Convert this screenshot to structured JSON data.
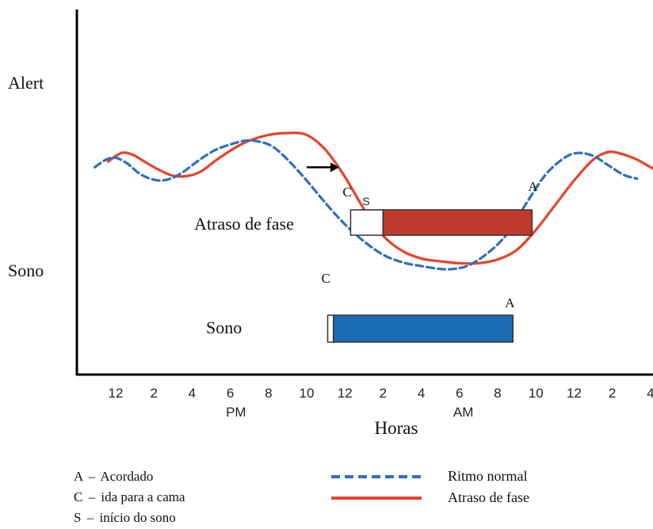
{
  "chart_data": {
    "type": "line",
    "ylabel_top": "Alert",
    "ylabel_bottom": "Sono",
    "xlabel": "Horas",
    "tick_labels": [
      "12",
      "2",
      "4",
      "6",
      "8",
      "10",
      "12",
      "2",
      "4",
      "6",
      "8",
      "10",
      "12",
      "2",
      "4"
    ],
    "tick_hours": [
      12,
      14,
      16,
      18,
      20,
      22,
      24,
      26,
      28,
      30,
      32,
      34,
      36,
      38,
      40
    ],
    "period_labels": [
      {
        "text": "PM",
        "hour": 18.3
      },
      {
        "text": "AM",
        "hour": 30.2
      }
    ],
    "xlim": [
      10.2,
      41.0
    ],
    "series": [
      {
        "name": "Ritmo normal",
        "color": "#2e6fc0",
        "style": "dashed",
        "points": [
          [
            10.9,
            62
          ],
          [
            11.5,
            66
          ],
          [
            12.0,
            67
          ],
          [
            12.6,
            64
          ],
          [
            13.2,
            59
          ],
          [
            13.8,
            56
          ],
          [
            14.4,
            55
          ],
          [
            15.0,
            56.5
          ],
          [
            15.6,
            60
          ],
          [
            16.4,
            66
          ],
          [
            17.2,
            71
          ],
          [
            18.0,
            74
          ],
          [
            18.8,
            76
          ],
          [
            19.5,
            75.5
          ],
          [
            20.2,
            73
          ],
          [
            21.0,
            66
          ],
          [
            22.0,
            55
          ],
          [
            23.0,
            43
          ],
          [
            24.0,
            32
          ],
          [
            25.0,
            23
          ],
          [
            26.0,
            16
          ],
          [
            27.0,
            12
          ],
          [
            28.0,
            10
          ],
          [
            29.0,
            8.5
          ],
          [
            29.7,
            8.5
          ],
          [
            30.5,
            10.5
          ],
          [
            31.5,
            17
          ],
          [
            32.5,
            27
          ],
          [
            33.5,
            43
          ],
          [
            34.5,
            58
          ],
          [
            35.5,
            67
          ],
          [
            36.2,
            69.5
          ],
          [
            37.0,
            68
          ],
          [
            37.8,
            63
          ],
          [
            38.6,
            58
          ],
          [
            39.3,
            56
          ]
        ]
      },
      {
        "name": "Atraso de fase",
        "color": "#e8432a",
        "style": "solid",
        "points": [
          [
            11.6,
            65
          ],
          [
            12.3,
            69.5
          ],
          [
            12.9,
            68.5
          ],
          [
            13.5,
            65
          ],
          [
            14.2,
            61
          ],
          [
            15.0,
            57.5
          ],
          [
            15.8,
            57.5
          ],
          [
            16.5,
            60
          ],
          [
            17.3,
            66
          ],
          [
            18.2,
            72
          ],
          [
            19.0,
            76
          ],
          [
            20.0,
            79
          ],
          [
            21.0,
            80
          ],
          [
            22.0,
            79
          ],
          [
            23.0,
            71
          ],
          [
            24.0,
            57
          ],
          [
            25.0,
            40
          ],
          [
            26.0,
            26
          ],
          [
            27.0,
            18
          ],
          [
            28.0,
            14
          ],
          [
            29.0,
            12.5
          ],
          [
            30.0,
            11.5
          ],
          [
            31.0,
            11.5
          ],
          [
            32.0,
            13.5
          ],
          [
            33.0,
            18.5
          ],
          [
            34.0,
            29
          ],
          [
            35.0,
            42
          ],
          [
            36.0,
            55
          ],
          [
            37.0,
            66
          ],
          [
            37.8,
            70
          ],
          [
            38.5,
            69
          ],
          [
            39.3,
            66
          ],
          [
            40.2,
            61
          ],
          [
            41.0,
            58
          ]
        ]
      }
    ],
    "shift_arrow": {
      "from_hour": 22.0,
      "to_hour": 23.7,
      "level": 62
    },
    "bars": [
      {
        "name": "Atraso de fase",
        "label": "Atraso de fase",
        "color": "#c0392b",
        "c_hour": 24.3,
        "s_hour": 26.0,
        "a_hour": 33.8,
        "markers": {
          "c": "C",
          "s": "S",
          "a": "A"
        }
      },
      {
        "name": "Sono",
        "label": "Sono",
        "color": "#1c6bb5",
        "c_hour": 23.1,
        "s_hour": 23.4,
        "a_hour": 32.8,
        "markers": {
          "c": "C",
          "a": "A"
        }
      }
    ],
    "grid": false
  },
  "legend": {
    "keys": [
      {
        "letter": "A",
        "dash": "–",
        "text": "Acordado"
      },
      {
        "letter": "C",
        "dash": "–",
        "text": "ida para a cama"
      },
      {
        "letter": "S",
        "dash": "–",
        "text": "início do sono"
      }
    ],
    "lines": [
      {
        "label": "Ritmo normal",
        "color": "#2e6fc0",
        "style": "dashed"
      },
      {
        "label": "Atraso de fase",
        "color": "#e8432a",
        "style": "solid"
      }
    ]
  }
}
